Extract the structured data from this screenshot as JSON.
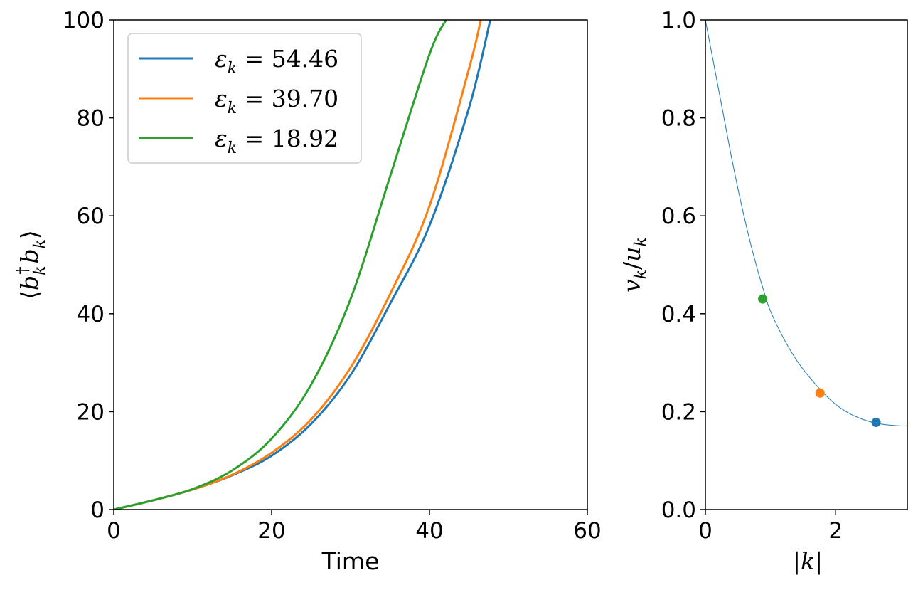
{
  "chart_data": [
    {
      "type": "line",
      "xlabel": "Time",
      "ylabel": "⟨b_k† b_k⟩",
      "xlim": [
        0,
        60
      ],
      "ylim": [
        0,
        100
      ],
      "xticks": [
        0,
        20,
        40,
        60
      ],
      "yticks": [
        0,
        20,
        40,
        60,
        80,
        100
      ],
      "legend": "top-left",
      "grid": false,
      "series": [
        {
          "name": "ε_k = 54.46",
          "label_value": "54.46",
          "color": "#1f77b4",
          "x": [
            0,
            5,
            10,
            15,
            20,
            25,
            30,
            35,
            40,
            45,
            47.7
          ],
          "y": [
            0,
            1.9,
            4.1,
            7.0,
            11.0,
            17.5,
            27.5,
            42.0,
            58.0,
            82.0,
            100.0
          ]
        },
        {
          "name": "ε_k = 39.70",
          "label_value": "39.70",
          "color": "#ff7f0e",
          "x": [
            0,
            5,
            10,
            15,
            20,
            25,
            30,
            35,
            40,
            45,
            46.5
          ],
          "y": [
            0,
            1.9,
            4.1,
            7.1,
            11.6,
            18.4,
            29.0,
            44.0,
            62.0,
            90.0,
            100.0
          ]
        },
        {
          "name": "ε_k = 18.92",
          "label_value": "18.92",
          "color": "#2ca02c",
          "x": [
            0,
            5,
            10,
            15,
            20,
            25,
            30,
            35,
            40,
            42.1
          ],
          "y": [
            0,
            1.9,
            4.2,
            8.0,
            14.5,
            25.5,
            43.0,
            68.0,
            93.0,
            100.0
          ]
        }
      ]
    },
    {
      "type": "scatter",
      "xlabel": "|k|",
      "ylabel": "v_k/u_k",
      "xlim": [
        0,
        3.1
      ],
      "ylim": [
        0,
        1.0
      ],
      "xticks": [
        0,
        2
      ],
      "yticks": [
        0.0,
        0.2,
        0.4,
        0.6,
        0.8,
        1.0
      ],
      "grid": false,
      "curve": {
        "color": "#1f77b4",
        "x": [
          0,
          0.1,
          0.2,
          0.3,
          0.4,
          0.5,
          0.6,
          0.7,
          0.8,
          0.9,
          1.0,
          1.2,
          1.4,
          1.6,
          1.8,
          2.0,
          2.2,
          2.4,
          2.6,
          2.8,
          3.0,
          3.1
        ],
        "y": [
          1.0,
          0.93,
          0.86,
          0.79,
          0.72,
          0.655,
          0.595,
          0.54,
          0.49,
          0.445,
          0.405,
          0.35,
          0.305,
          0.27,
          0.24,
          0.215,
          0.197,
          0.185,
          0.177,
          0.173,
          0.171,
          0.171
        ]
      },
      "points": [
        {
          "x": 0.88,
          "y": 0.43,
          "color": "#2ca02c"
        },
        {
          "x": 1.76,
          "y": 0.238,
          "color": "#ff7f0e"
        },
        {
          "x": 2.62,
          "y": 0.178,
          "color": "#1f77b4"
        }
      ]
    }
  ]
}
